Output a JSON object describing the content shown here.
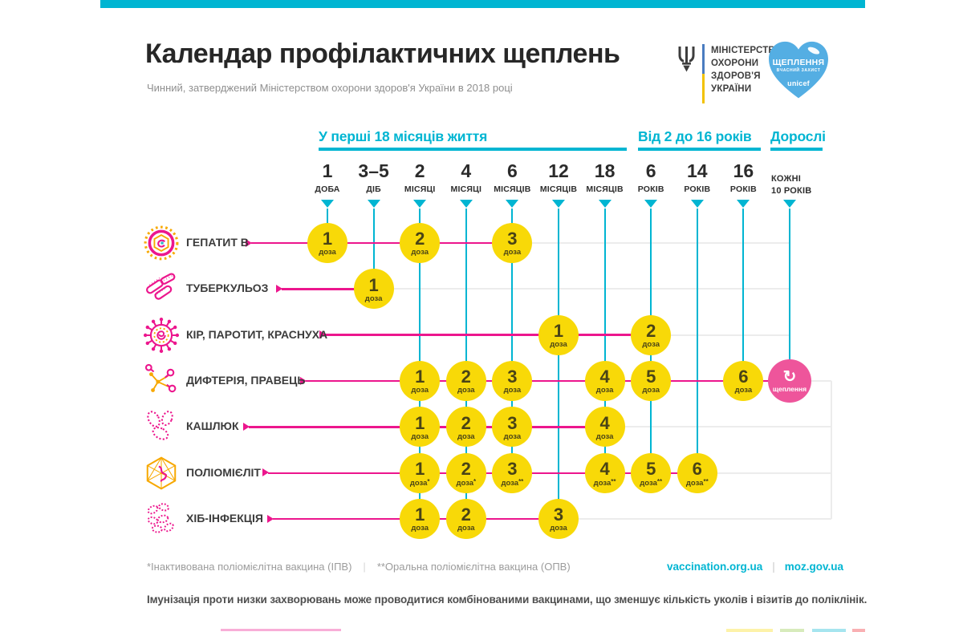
{
  "header": {
    "title": "Календар профілактичних щеплень",
    "subtitle": "Чинний, затверджений Міністерством охорони здоров'я України в 2018 році",
    "ministry_logo": {
      "lines": [
        "МІНІСТЕРСТВО",
        "ОХОРОНИ",
        "ЗДОРОВ'Я",
        "УКРАЇНИ"
      ]
    },
    "heart_badge": {
      "title": "ЩЕПЛЕННЯ",
      "subtitle": "ВЧАСНИЙ ЗАХИСТ",
      "brand": "unicef"
    }
  },
  "colors": {
    "cyan": "#00b5d2",
    "magenta": "#ec168d",
    "yellow": "#f8d908",
    "booster_pink": "#ee559b",
    "heart_blue": "#54aee3",
    "orange": "#f7a800",
    "grid_gray": "#ececec",
    "dose_text": "#4a4416"
  },
  "chart_data": {
    "type": "table",
    "title": "Календар профілактичних щеплень",
    "groups": [
      {
        "label": "У перші 18 місяців життя",
        "col_start": 0,
        "col_end": 6
      },
      {
        "label": "Від 2 до 16 років",
        "col_start": 7,
        "col_end": 9
      },
      {
        "label": "Дорослі",
        "col_start": 10,
        "col_end": 10
      }
    ],
    "columns": [
      {
        "age": "1",
        "unit": "ДОБА"
      },
      {
        "age": "3–5",
        "unit": "ДІБ"
      },
      {
        "age": "2",
        "unit": "МІСЯЦІ"
      },
      {
        "age": "4",
        "unit": "МІСЯЦІ"
      },
      {
        "age": "6",
        "unit": "МІСЯЦІВ"
      },
      {
        "age": "12",
        "unit": "МІСЯЦІВ"
      },
      {
        "age": "18",
        "unit": "МІСЯЦІВ"
      },
      {
        "age": "6",
        "unit": "РОКІВ"
      },
      {
        "age": "14",
        "unit": "РОКІВ"
      },
      {
        "age": "16",
        "unit": "РОКІВ"
      },
      {
        "age": "КОЖНІ",
        "unit": "10 РОКІВ",
        "style": "text"
      }
    ],
    "rows": [
      {
        "label": "ГЕПАТИТ В",
        "icon": "hepatitis-b-virus-icon",
        "doses": [
          {
            "col": 0,
            "num": "1",
            "sub": "доза"
          },
          {
            "col": 2,
            "num": "2",
            "sub": "доза"
          },
          {
            "col": 4,
            "num": "3",
            "sub": "доза"
          }
        ]
      },
      {
        "label": "ТУБЕРКУЛЬОЗ",
        "icon": "tuberculosis-bacteria-icon",
        "doses": [
          {
            "col": 1,
            "num": "1",
            "sub": "доза"
          }
        ]
      },
      {
        "label": "КІР, ПАРОТИТ, КРАСНУХА",
        "icon": "measles-virus-icon",
        "doses": [
          {
            "col": 5,
            "num": "1",
            "sub": "доза"
          },
          {
            "col": 7,
            "num": "2",
            "sub": "доза"
          }
        ]
      },
      {
        "label": "ДИФТЕРІЯ, ПРАВЕЦЬ",
        "icon": "diphtheria-bacteria-icon",
        "doses": [
          {
            "col": 2,
            "num": "1",
            "sub": "доза"
          },
          {
            "col": 3,
            "num": "2",
            "sub": "доза"
          },
          {
            "col": 4,
            "num": "3",
            "sub": "доза"
          },
          {
            "col": 6,
            "num": "4",
            "sub": "доза"
          },
          {
            "col": 7,
            "num": "5",
            "sub": "доза"
          },
          {
            "col": 9,
            "num": "6",
            "sub": "доза"
          }
        ],
        "booster": {
          "col": 10,
          "label": "щеплення",
          "icon": "repeat-icon"
        }
      },
      {
        "label": "КАШЛЮК",
        "icon": "pertussis-bacteria-icon",
        "doses": [
          {
            "col": 2,
            "num": "1",
            "sub": "доза"
          },
          {
            "col": 3,
            "num": "2",
            "sub": "доза"
          },
          {
            "col": 4,
            "num": "3",
            "sub": "доза"
          },
          {
            "col": 6,
            "num": "4",
            "sub": "доза"
          }
        ]
      },
      {
        "label": "ПОЛІОМІЄЛІТ",
        "icon": "polio-virus-icon",
        "doses": [
          {
            "col": 2,
            "num": "1",
            "sub": "доза*"
          },
          {
            "col": 3,
            "num": "2",
            "sub": "доза*"
          },
          {
            "col": 4,
            "num": "3",
            "sub": "доза**"
          },
          {
            "col": 6,
            "num": "4",
            "sub": "доза**"
          },
          {
            "col": 7,
            "num": "5",
            "sub": "доза**"
          },
          {
            "col": 8,
            "num": "6",
            "sub": "доза**"
          }
        ]
      },
      {
        "label": "ХІБ-ІНФЕКЦІЯ",
        "icon": "hib-bacteria-icon",
        "doses": [
          {
            "col": 2,
            "num": "1",
            "sub": "доза"
          },
          {
            "col": 3,
            "num": "2",
            "sub": "доза"
          },
          {
            "col": 5,
            "num": "3",
            "sub": "доза"
          }
        ]
      }
    ]
  },
  "footer": {
    "footnote1": "*Інактивована поліомієлітна вакцина (ІПВ)",
    "footnote2": "**Оральна поліомієлітна вакцина (ОПВ)",
    "links": [
      "vaccination.org.ua",
      "moz.gov.ua"
    ],
    "note": "Імунізація проти низки захворювань може проводитися комбінованими вакцинами, що зменшує кількість уколів і візитів до поліклінік."
  }
}
